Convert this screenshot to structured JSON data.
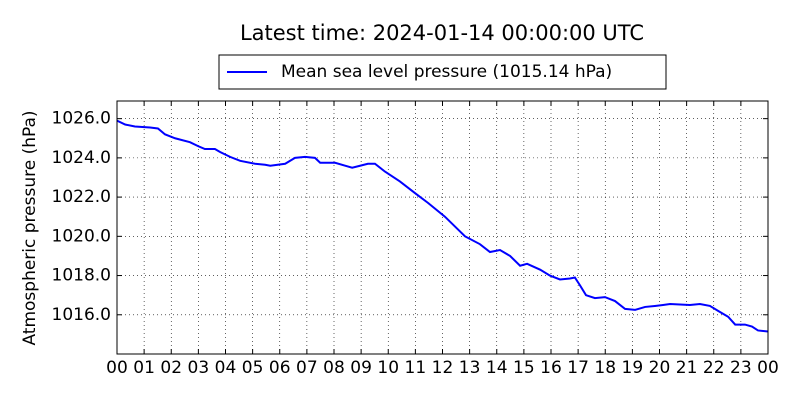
{
  "chart_data": {
    "type": "line",
    "title": "Latest time: 2024-01-14 00:00:00 UTC",
    "y_label": "Atmospheric pressure (hPa)",
    "x": [
      0,
      0.3,
      0.66,
      1.22,
      1.51,
      1.77,
      2.14,
      2.69,
      2.99,
      3.24,
      3.61,
      3.8,
      4.17,
      4.54,
      5.09,
      5.46,
      5.65,
      6.2,
      6.56,
      6.93,
      7.3,
      7.49,
      8.04,
      8.41,
      8.67,
      8.96,
      9.25,
      9.51,
      9.88,
      10.43,
      10.99,
      11.47,
      12.09,
      12.83,
      13.38,
      13.75,
      14.12,
      14.49,
      14.86,
      15.12,
      15.6,
      15.96,
      16.33,
      16.7,
      16.88,
      17.07,
      17.29,
      17.62,
      17.99,
      18.36,
      18.73,
      19.1,
      19.47,
      19.83,
      20.13,
      20.39,
      21.12,
      21.49,
      21.86,
      22.16,
      22.53,
      22.79,
      23.15,
      23.41,
      23.63,
      24
    ],
    "series": [
      {
        "name": "Mean sea level pressure (1015.14 hPa)",
        "color": "#0000ff",
        "values": [
          1025.9,
          1025.7,
          1025.6,
          1025.55,
          1025.5,
          1025.2,
          1025.0,
          1024.8,
          1024.6,
          1024.45,
          1024.45,
          1024.3,
          1024.05,
          1023.85,
          1023.7,
          1023.65,
          1023.6,
          1023.7,
          1024.0,
          1024.05,
          1024.0,
          1023.75,
          1023.75,
          1023.6,
          1023.5,
          1023.6,
          1023.7,
          1023.7,
          1023.3,
          1022.8,
          1022.2,
          1021.7,
          1021.0,
          1020.0,
          1019.6,
          1019.2,
          1019.3,
          1019.0,
          1018.5,
          1018.6,
          1018.3,
          1018.0,
          1017.8,
          1017.85,
          1017.9,
          1017.5,
          1017.0,
          1016.85,
          1016.9,
          1016.7,
          1016.3,
          1016.25,
          1016.4,
          1016.45,
          1016.5,
          1016.55,
          1016.5,
          1016.55,
          1016.45,
          1016.2,
          1015.9,
          1015.5,
          1015.5,
          1015.4,
          1015.2,
          1015.15
        ]
      }
    ],
    "xlim": [
      0,
      24
    ],
    "xticks": [
      {
        "value": 0,
        "label": "00"
      },
      {
        "value": 1,
        "label": "01"
      },
      {
        "value": 2,
        "label": "02"
      },
      {
        "value": 3,
        "label": "03"
      },
      {
        "value": 4,
        "label": "04"
      },
      {
        "value": 5,
        "label": "05"
      },
      {
        "value": 6,
        "label": "06"
      },
      {
        "value": 7,
        "label": "07"
      },
      {
        "value": 8,
        "label": "08"
      },
      {
        "value": 9,
        "label": "09"
      },
      {
        "value": 10,
        "label": "10"
      },
      {
        "value": 11,
        "label": "11"
      },
      {
        "value": 12,
        "label": "12"
      },
      {
        "value": 13,
        "label": "13"
      },
      {
        "value": 14,
        "label": "14"
      },
      {
        "value": 15,
        "label": "15"
      },
      {
        "value": 16,
        "label": "16"
      },
      {
        "value": 17,
        "label": "17"
      },
      {
        "value": 18,
        "label": "18"
      },
      {
        "value": 19,
        "label": "19"
      },
      {
        "value": 20,
        "label": "20"
      },
      {
        "value": 21,
        "label": "21"
      },
      {
        "value": 22,
        "label": "22"
      },
      {
        "value": 23,
        "label": "23"
      },
      {
        "value": 24,
        "label": "00"
      }
    ],
    "ylim": [
      1014.0,
      1026.9
    ],
    "yticks": [
      {
        "value": 1016,
        "label": "1016.0"
      },
      {
        "value": 1018,
        "label": "1018.0"
      },
      {
        "value": 1020,
        "label": "1020.0"
      },
      {
        "value": 1022,
        "label": "1022.0"
      },
      {
        "value": 1024,
        "label": "1024.0"
      },
      {
        "value": 1026,
        "label": "1026.0"
      }
    ],
    "grid": true,
    "legend": "top"
  }
}
